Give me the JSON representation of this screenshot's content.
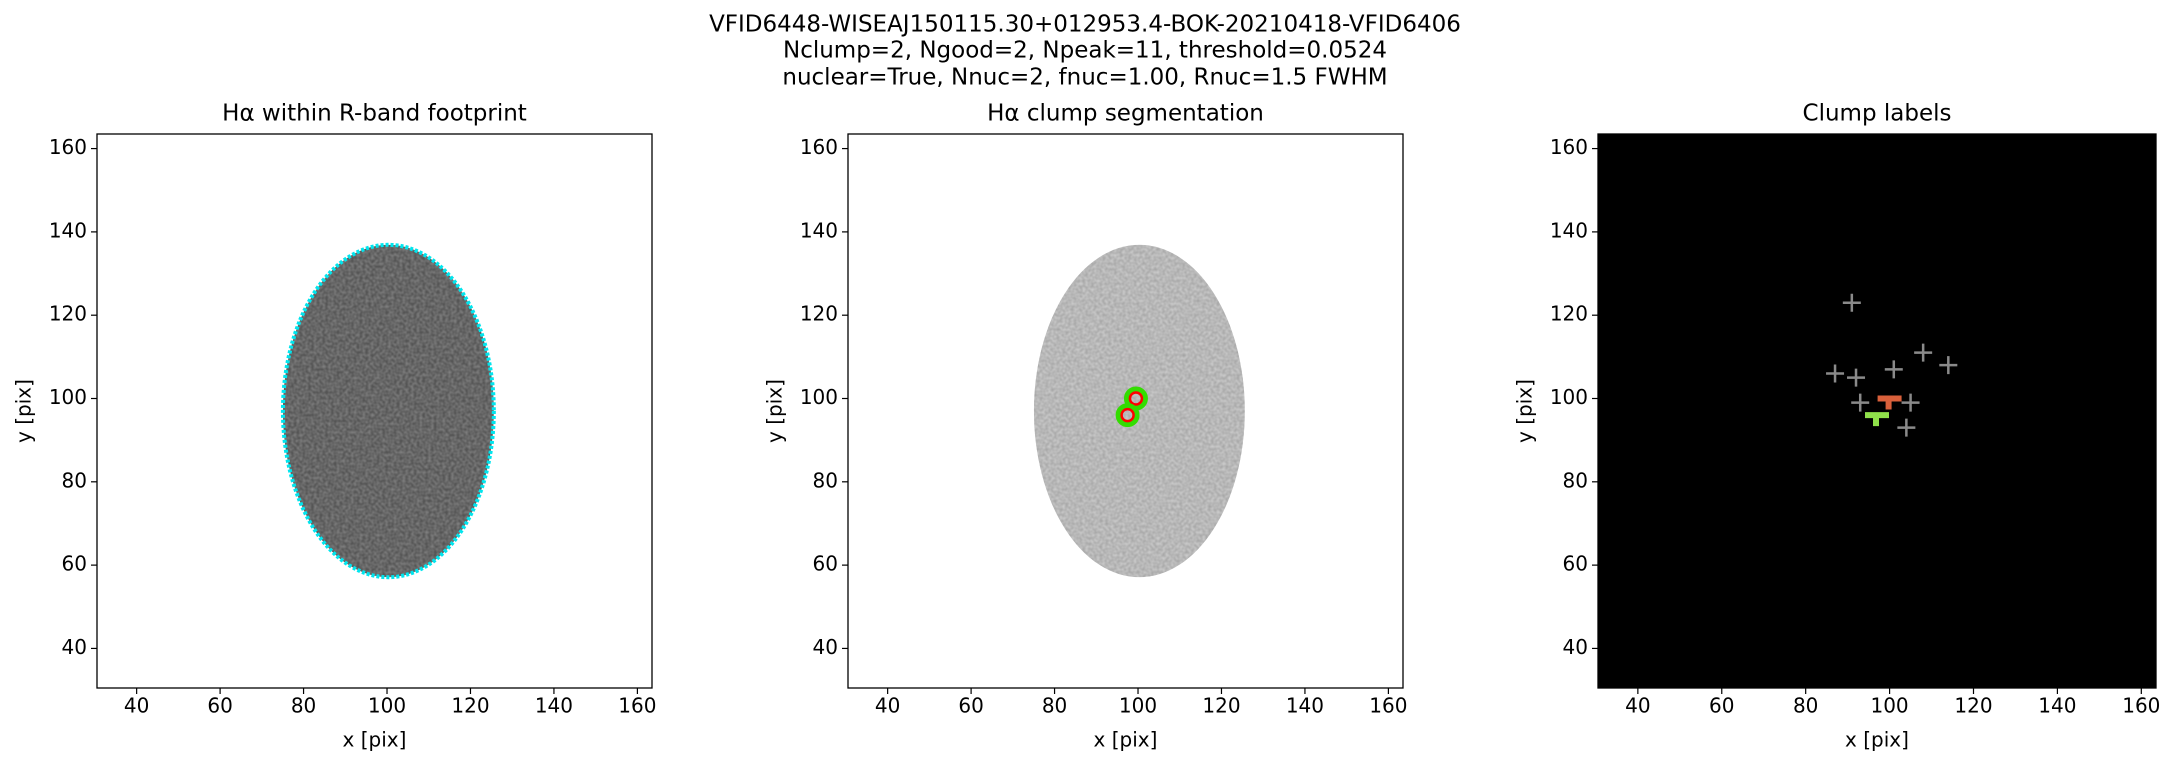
{
  "figure": {
    "title_lines": [
      "VFID6448-WISEAJ150115.30+012953.4-BOK-20210418-VFID6406",
      "Nclump=2, Ngood=2, Npeak=11, threshold=0.0524",
      "nuclear=True, Nnuc=2, fnuc=1.00, Rnuc=1.5 FWHM"
    ]
  },
  "chart_data": [
    {
      "type": "image",
      "title": "Hα within R-band footprint",
      "xlabel": "x [pix]",
      "ylabel": "y [pix]",
      "xlim": [
        30.5,
        163.5
      ],
      "ylim": [
        30.5,
        163.5
      ],
      "xticks": [
        40,
        60,
        80,
        100,
        120,
        140,
        160
      ],
      "yticks": [
        40,
        60,
        80,
        100,
        120,
        140,
        160
      ],
      "background": "#ffffff",
      "outline_color": "#00e5ee"
    },
    {
      "type": "image",
      "title": "Hα clump segmentation",
      "xlabel": "x [pix]",
      "ylabel": "y [pix]",
      "xlim": [
        30.5,
        163.5
      ],
      "ylim": [
        30.5,
        163.5
      ],
      "xticks": [
        40,
        60,
        80,
        100,
        120,
        140,
        160
      ],
      "yticks": [
        40,
        60,
        80,
        100,
        120,
        140,
        160
      ],
      "background": "#ffffff",
      "points": {
        "x": [
          99.5,
          97.5
        ],
        "y": [
          100,
          96
        ],
        "color": "#ff0000",
        "edge_color": "#33dd00"
      }
    },
    {
      "type": "image",
      "title": "Clump labels",
      "xlabel": "x [pix]",
      "ylabel": "y [pix]",
      "xlim": [
        30.5,
        163.5
      ],
      "ylim": [
        30.5,
        163.5
      ],
      "xticks": [
        40,
        60,
        80,
        100,
        120,
        140,
        160
      ],
      "yticks": [
        40,
        60,
        80,
        100,
        120,
        140,
        160
      ],
      "background": "#000000",
      "segments": {
        "x": [
          100,
          97
        ],
        "y": [
          100,
          96
        ],
        "colors": [
          "#d9603b",
          "#8fe04a"
        ]
      },
      "points": {
        "x": [
          91,
          87,
          92,
          101,
          108,
          114,
          93,
          105,
          104
        ],
        "y": [
          123,
          106,
          105,
          107,
          111,
          108,
          99,
          99,
          93
        ],
        "color": "#8a8a8a"
      }
    }
  ]
}
